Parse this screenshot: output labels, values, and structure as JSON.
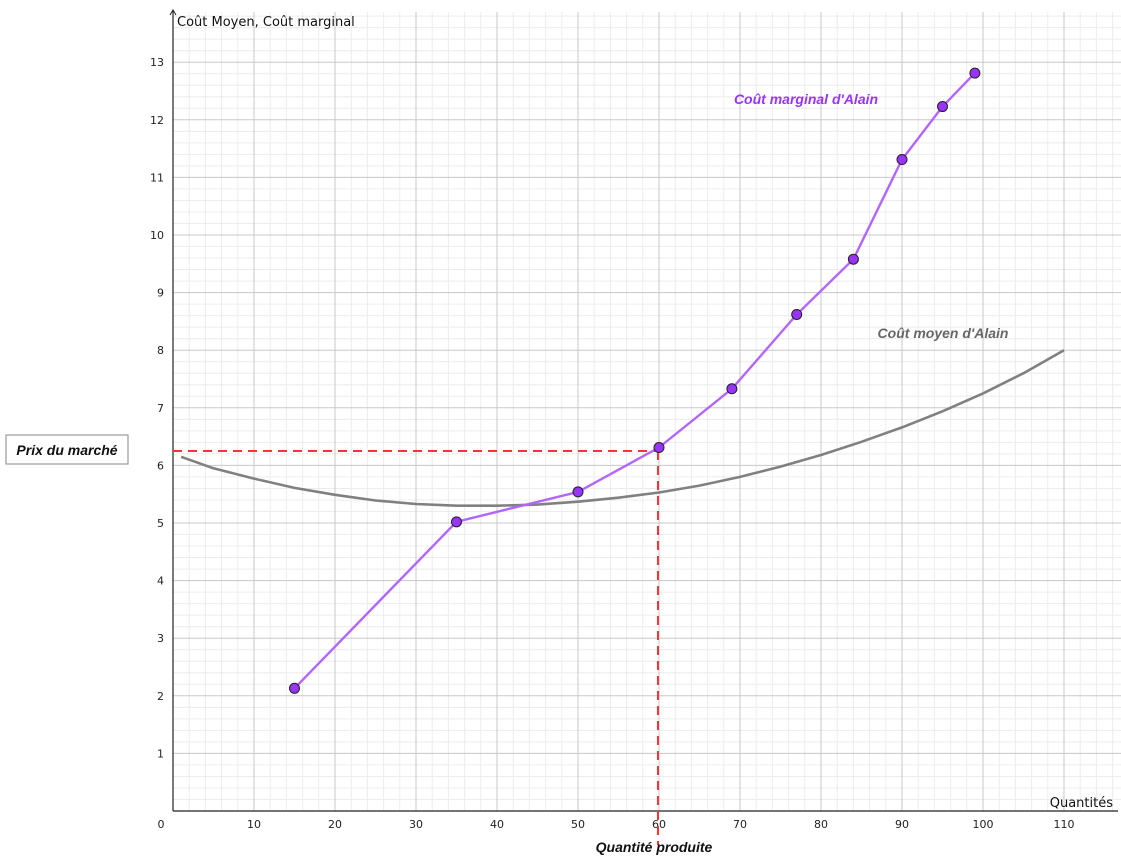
{
  "chart_data": {
    "type": "line",
    "xlabel": "Quantités",
    "ylabel": "Coût Moyen, Coût marginal",
    "bottom_label": "Quantité produite",
    "price_label": "Prix du marché",
    "xlim": [
      0,
      117
    ],
    "ylim": [
      0,
      13.8
    ],
    "x_ticks": [
      0,
      10,
      20,
      30,
      40,
      50,
      60,
      70,
      80,
      90,
      100,
      110
    ],
    "y_ticks": [
      1,
      2,
      3,
      4,
      5,
      6,
      7,
      8,
      9,
      10,
      11,
      12,
      13
    ],
    "grid": true,
    "series": [
      {
        "name": "Coût marginal d'Alain",
        "color": "#b266ff",
        "marker_color": "#9933ff",
        "x": [
          15,
          35,
          50,
          60,
          69,
          77,
          84,
          90,
          95,
          99
        ],
        "y": [
          2.13,
          5.02,
          5.54,
          6.31,
          7.33,
          8.62,
          9.58,
          11.31,
          12.23,
          12.81
        ]
      },
      {
        "name": "Coût moyen d'Alain",
        "color": "#808080",
        "x": [
          1,
          5,
          10,
          15,
          20,
          25,
          30,
          35,
          40,
          45,
          50,
          55,
          60,
          65,
          70,
          75,
          80,
          85,
          90,
          95,
          100,
          105,
          110
        ],
        "y": [
          6.15,
          5.95,
          5.77,
          5.61,
          5.49,
          5.39,
          5.33,
          5.3,
          5.3,
          5.32,
          5.37,
          5.44,
          5.53,
          5.65,
          5.8,
          5.98,
          6.18,
          6.41,
          6.66,
          6.94,
          7.25,
          7.6,
          8.0
        ]
      }
    ],
    "market_price": 6.25,
    "market_quantity": 60,
    "reference_line_color": "#ff3333"
  }
}
